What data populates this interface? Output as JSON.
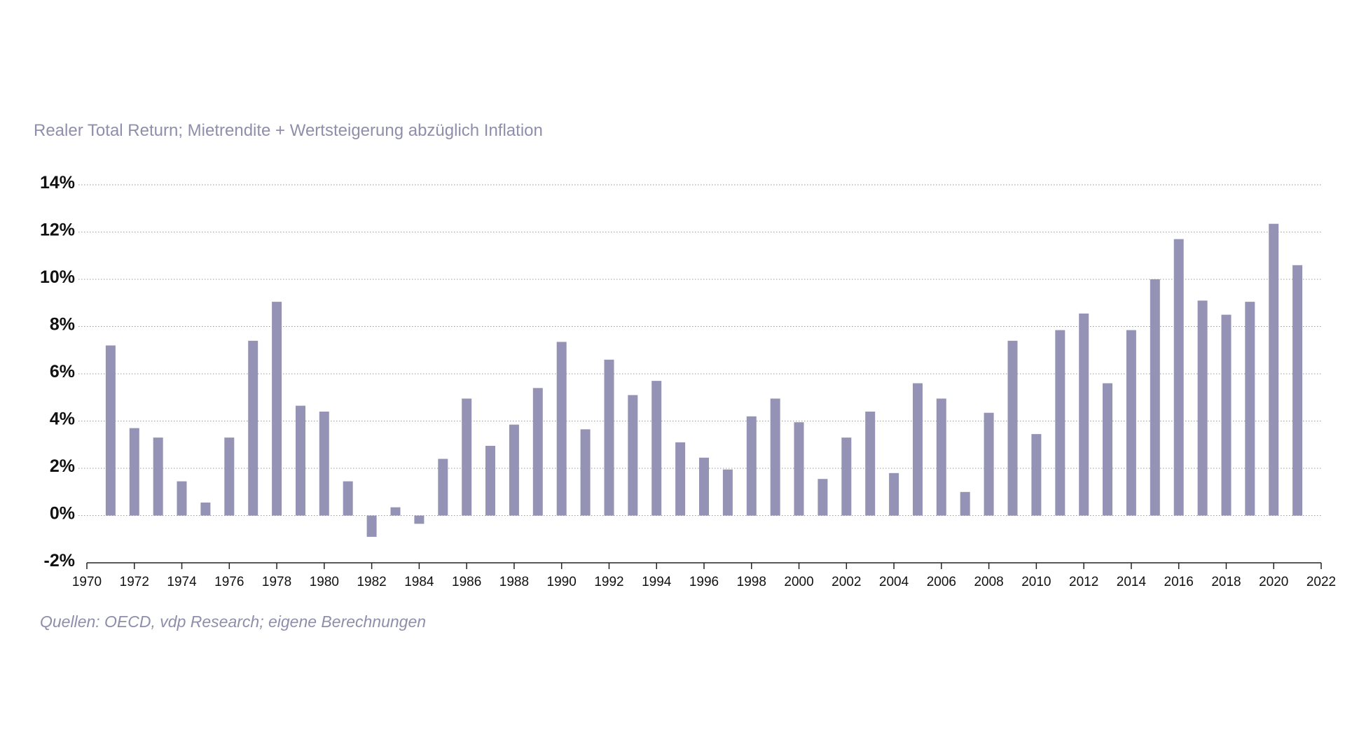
{
  "subtitle": "Realer Total Return; Mietrendite + Wertsteigerung abzüglich Inflation",
  "source": "Quellen: OECD, vdp Research; eigene Berechnungen",
  "colors": {
    "bar": "#9593b5",
    "text_muted": "#8f8eab"
  },
  "chart_data": {
    "type": "bar",
    "title": "",
    "subtitle": "Realer Total Return; Mietrendite + Wertsteigerung abzüglich Inflation",
    "xlabel": "",
    "ylabel": "",
    "ylim": [
      -2,
      14
    ],
    "xlim": [
      1970,
      2022
    ],
    "yticks": [
      -2,
      0,
      2,
      4,
      6,
      8,
      10,
      12,
      14
    ],
    "ytick_labels": [
      "-2%",
      "0%",
      "2%",
      "4%",
      "6%",
      "8%",
      "10%",
      "12%",
      "14%"
    ],
    "xticks": [
      1970,
      1972,
      1974,
      1976,
      1978,
      1980,
      1982,
      1984,
      1986,
      1988,
      1990,
      1992,
      1994,
      1996,
      1998,
      2000,
      2002,
      2004,
      2006,
      2008,
      2010,
      2012,
      2014,
      2016,
      2018,
      2020,
      2022
    ],
    "grid": true,
    "categories": [
      1971,
      1972,
      1973,
      1974,
      1975,
      1976,
      1977,
      1978,
      1979,
      1980,
      1981,
      1982,
      1983,
      1984,
      1985,
      1986,
      1987,
      1988,
      1989,
      1990,
      1991,
      1992,
      1993,
      1994,
      1995,
      1996,
      1997,
      1998,
      1999,
      2000,
      2001,
      2002,
      2003,
      2004,
      2005,
      2006,
      2007,
      2008,
      2009,
      2010,
      2011,
      2012,
      2013,
      2014,
      2015,
      2016,
      2017,
      2018,
      2019,
      2020,
      2021
    ],
    "values": [
      7.2,
      3.7,
      3.3,
      1.45,
      0.55,
      3.3,
      7.4,
      9.05,
      4.65,
      4.4,
      1.45,
      -0.9,
      0.35,
      -0.35,
      2.4,
      4.95,
      2.95,
      3.85,
      5.4,
      7.35,
      3.65,
      6.6,
      5.1,
      5.7,
      3.1,
      2.45,
      1.95,
      4.2,
      4.95,
      3.95,
      1.55,
      3.3,
      4.4,
      1.8,
      5.6,
      4.95,
      1.0,
      4.35,
      7.4,
      3.45,
      7.85,
      8.55,
      5.6,
      7.85,
      10.0,
      11.7,
      9.1,
      8.5,
      9.05,
      12.35,
      10.6
    ],
    "series": [
      {
        "name": "Realer Total Return",
        "values": [
          7.2,
          3.7,
          3.3,
          1.45,
          0.55,
          3.3,
          7.4,
          9.05,
          4.65,
          4.4,
          1.45,
          -0.9,
          0.35,
          -0.35,
          2.4,
          4.95,
          2.95,
          3.85,
          5.4,
          7.35,
          3.65,
          6.6,
          5.1,
          5.7,
          3.1,
          2.45,
          1.95,
          4.2,
          4.95,
          3.95,
          1.55,
          3.3,
          4.4,
          1.8,
          5.6,
          4.95,
          1.0,
          4.35,
          7.4,
          3.45,
          7.85,
          8.55,
          5.6,
          7.85,
          10.0,
          11.7,
          9.1,
          8.5,
          9.05,
          12.35,
          10.6
        ]
      }
    ]
  }
}
